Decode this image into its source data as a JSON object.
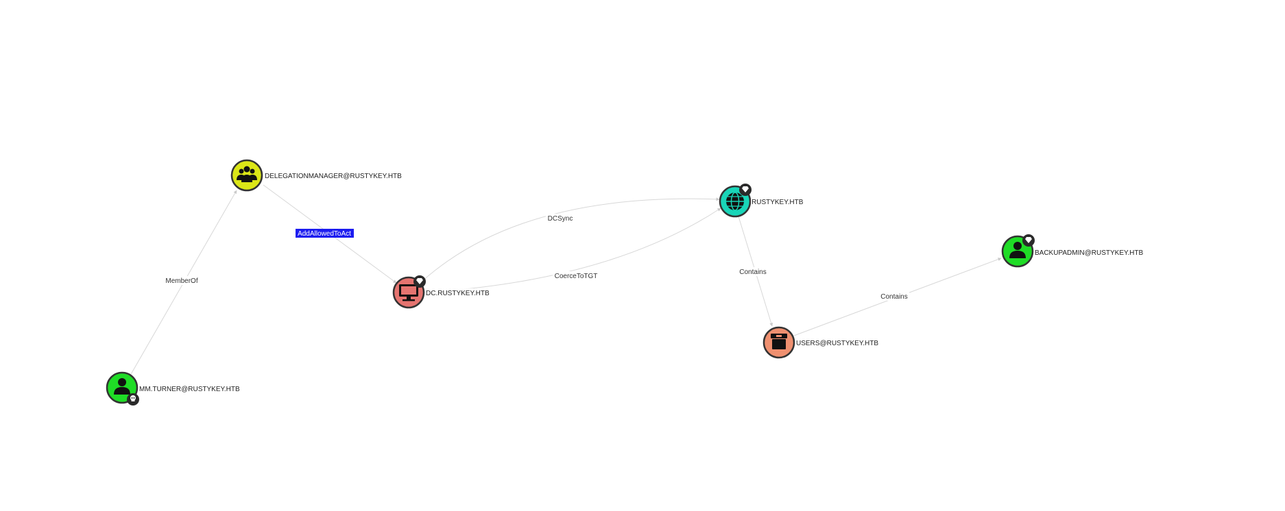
{
  "colors": {
    "user": "#1fdc26",
    "group": "#dbe617",
    "computer": "#e57470",
    "domain": "#19d5b8",
    "ou": "#ef9070",
    "edge": "#d7d7d7",
    "highlight": "#1c1cf0"
  },
  "nodes": {
    "mm_turner": {
      "label": "MM.TURNER@RUSTYKEY.HTB",
      "icon": "user-icon",
      "badge": "skull-badge-icon"
    },
    "delegationmanager": {
      "label": "DELEGATIONMANAGER@RUSTYKEY.HTB",
      "icon": "group-icon"
    },
    "dc": {
      "label": "DC.RUSTYKEY.HTB",
      "icon": "computer-icon",
      "badge": "gem-badge-icon"
    },
    "rustykey": {
      "label": "RUSTYKEY.HTB",
      "icon": "globe-icon",
      "badge": "gem-badge-icon"
    },
    "users": {
      "label": "USERS@RUSTYKEY.HTB",
      "icon": "container-icon"
    },
    "backupadmin": {
      "label": "BACKUPADMIN@RUSTYKEY.HTB",
      "icon": "user-icon",
      "badge": "gem-badge-icon"
    }
  },
  "edges": {
    "memberof": "MemberOf",
    "addallowedtoact": "AddAllowedToAct",
    "dcsync": "DCSync",
    "coercetotgt": "CoerceToTGT",
    "contains_domain_users": "Contains",
    "contains_users_backupadmin": "Contains"
  }
}
